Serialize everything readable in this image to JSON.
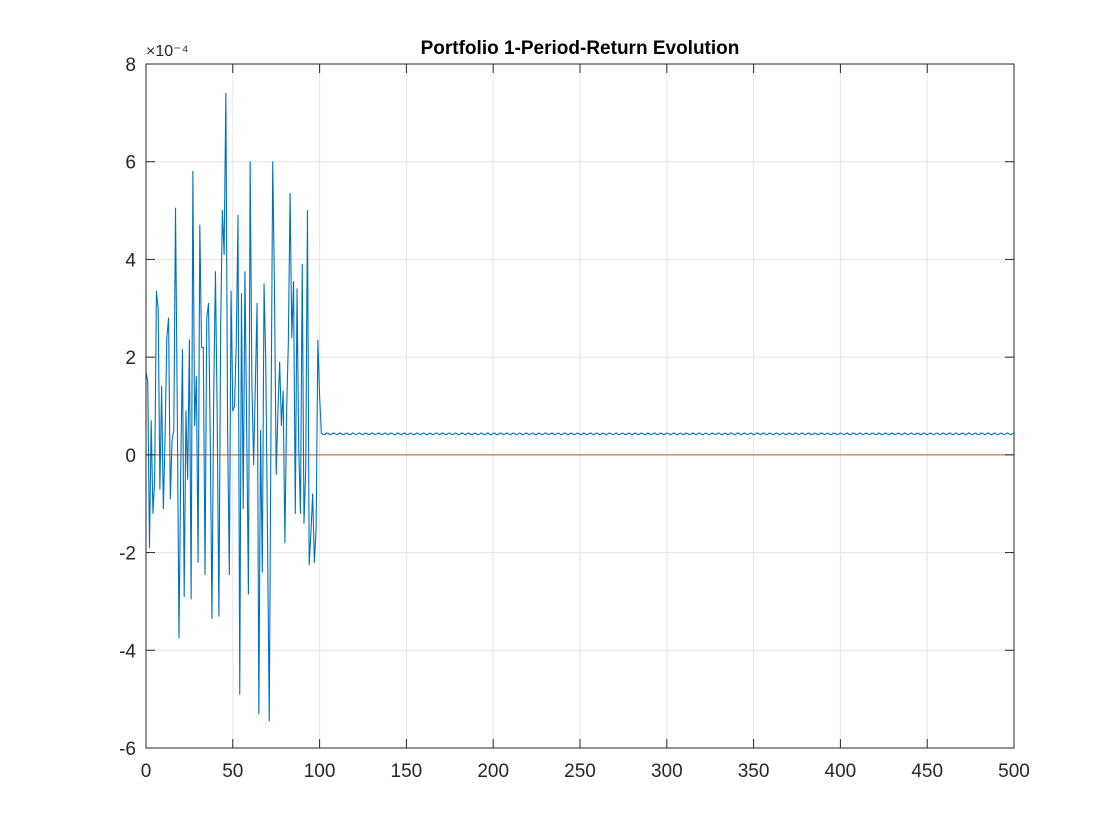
{
  "chart_data": {
    "type": "line",
    "title": "Portfolio 1-Period-Return Evolution",
    "xlabel": "",
    "ylabel": "",
    "xlim": [
      0,
      500
    ],
    "ylim": [
      -6,
      8
    ],
    "y_multiplier": "×10⁻⁴",
    "x_ticks": [
      "0",
      "50",
      "100",
      "150",
      "200",
      "250",
      "300",
      "350",
      "400",
      "450",
      "500"
    ],
    "y_ticks": [
      "-6",
      "-4",
      "-2",
      "0",
      "2",
      "4",
      "6",
      "8"
    ],
    "grid": true,
    "colors": {
      "series": "#0072BD",
      "zero_line": "#D95319",
      "grid": "#E6E6E6",
      "axis": "#262626"
    },
    "series": [
      {
        "x": [
          0,
          1,
          2,
          3,
          4,
          5,
          6,
          7,
          8,
          9,
          10,
          11,
          12,
          13,
          14,
          15,
          16,
          17,
          18,
          19,
          20,
          21,
          22,
          23,
          24,
          25,
          26,
          27,
          28,
          29,
          30,
          31,
          32,
          33,
          34,
          35,
          36,
          37,
          38,
          39,
          40,
          41,
          42,
          43,
          44,
          45,
          46,
          47,
          48,
          49,
          50,
          51,
          52,
          53,
          54,
          55,
          56,
          57,
          58,
          59,
          60,
          61,
          62,
          63,
          64,
          65,
          66,
          67,
          68,
          69,
          70,
          71,
          72,
          73,
          74,
          75,
          76,
          77,
          78,
          79,
          80,
          81,
          82,
          83,
          84,
          85,
          86,
          87,
          88,
          89,
          90,
          91,
          92,
          93,
          94,
          95,
          96,
          97,
          98,
          99,
          100,
          101
        ],
        "values": [
          1.7,
          1.5,
          -1.9,
          0.7,
          -1.2,
          -0.5,
          3.35,
          3.0,
          -0.7,
          1.4,
          -1.1,
          0.4,
          2.4,
          2.8,
          -0.9,
          0.3,
          0.5,
          5.05,
          1.0,
          -3.75,
          -0.3,
          2.15,
          -2.9,
          0.9,
          -0.5,
          2.35,
          -2.95,
          5.8,
          0.6,
          1.6,
          -2.2,
          4.7,
          2.2,
          2.2,
          -2.45,
          2.8,
          3.1,
          0.4,
          -3.35,
          1.2,
          3.75,
          0.8,
          -3.3,
          2.6,
          5.0,
          4.1,
          7.4,
          0.5,
          -2.45,
          3.35,
          0.9,
          1.0,
          2.3,
          4.9,
          -4.9,
          3.3,
          -1.1,
          3.75,
          0.5,
          -2.85,
          6.0,
          1.4,
          -0.2,
          1.5,
          3.1,
          -5.3,
          0.5,
          -2.4,
          3.5,
          1.9,
          -1.7,
          -5.45,
          0.6,
          6.0,
          3.4,
          -0.4,
          0.9,
          1.9,
          0.6,
          1.3,
          -1.8,
          0.9,
          2.3,
          5.35,
          2.4,
          3.55,
          -1.2,
          3.4,
          0.1,
          -1.2,
          3.9,
          -1.4,
          -0.3,
          5.0,
          -2.25,
          -1.6,
          -0.8,
          -2.2,
          -1.5,
          2.35,
          1.2,
          0.45
        ]
      },
      {
        "x_range": [
          101,
          500
        ],
        "level": 0.43,
        "noise": 0.02,
        "values_note_free": true
      }
    ],
    "reference_line": {
      "y": 0
    }
  }
}
